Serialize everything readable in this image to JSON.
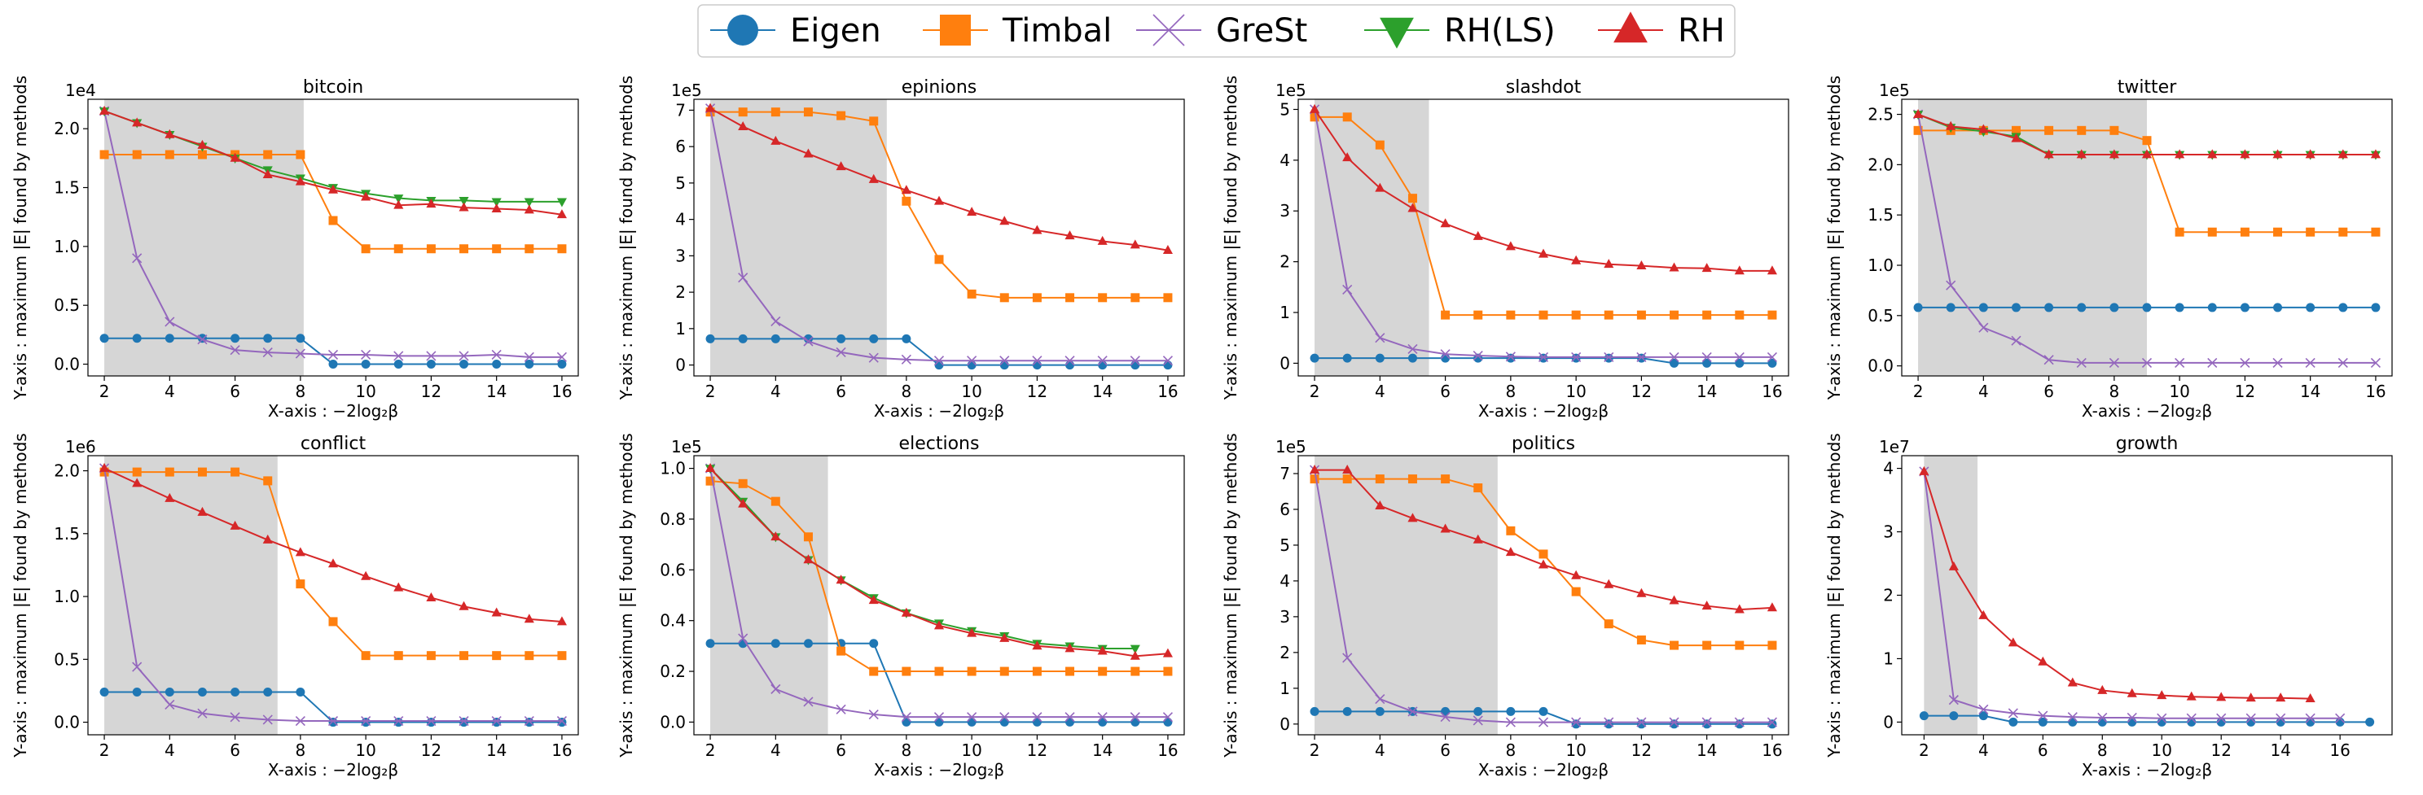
{
  "legend": [
    {
      "name": "Eigen",
      "color": "#1f77b4",
      "marker": "circle"
    },
    {
      "name": "Timbal",
      "color": "#ff7f0e",
      "marker": "square"
    },
    {
      "name": "GreSt",
      "color": "#9467bd",
      "marker": "x"
    },
    {
      "name": "RH(LS)",
      "color": "#2ca02c",
      "marker": "triangle-down"
    },
    {
      "name": "RH",
      "color": "#d62728",
      "marker": "triangle-up"
    }
  ],
  "chart_data": [
    {
      "type": "line",
      "title": "bitcoin",
      "sci": "1e4",
      "xlabel": "X-axis : −2log₂β",
      "ylabel": "Y-axis : maximum |E| found by methods",
      "xlim": [
        1.5,
        16.5
      ],
      "ylim": [
        -0.1,
        2.25
      ],
      "xticks": [
        2,
        4,
        6,
        8,
        10,
        12,
        14,
        16
      ],
      "yticks": [
        0.0,
        0.5,
        1.0,
        1.5,
        2.0
      ],
      "ytick_labels": [
        "0.0",
        "0.5",
        "1.0",
        "1.5",
        "2.0"
      ],
      "shade": [
        2,
        8.1
      ],
      "x": [
        2,
        3,
        4,
        5,
        6,
        7,
        8,
        9,
        10,
        11,
        12,
        13,
        14,
        15,
        16
      ],
      "series": [
        {
          "name": "Eigen",
          "values": [
            0.22,
            0.22,
            0.22,
            0.22,
            0.22,
            0.22,
            0.22,
            0.0,
            0.0,
            0.0,
            0.0,
            0.0,
            0.0,
            0.0,
            0.0
          ]
        },
        {
          "name": "Timbal",
          "values": [
            1.78,
            1.78,
            1.78,
            1.78,
            1.78,
            1.78,
            1.78,
            1.22,
            0.98,
            0.98,
            0.98,
            0.98,
            0.98,
            0.98,
            0.98
          ]
        },
        {
          "name": "GreSt",
          "values": [
            2.15,
            0.9,
            0.36,
            0.21,
            0.12,
            0.1,
            0.09,
            0.08,
            0.08,
            0.07,
            0.07,
            0.07,
            0.08,
            0.06,
            0.06
          ]
        },
        {
          "name": "RH(LS)",
          "values": [
            2.15,
            2.05,
            1.95,
            1.85,
            1.75,
            1.65,
            1.58,
            1.5,
            1.45,
            1.41,
            1.39,
            1.39,
            1.38,
            1.38,
            1.38
          ]
        },
        {
          "name": "RH",
          "values": [
            2.15,
            2.05,
            1.95,
            1.86,
            1.75,
            1.61,
            1.55,
            1.48,
            1.42,
            1.35,
            1.36,
            1.33,
            1.32,
            1.31,
            1.27
          ]
        }
      ]
    },
    {
      "type": "line",
      "title": "epinions",
      "sci": "1e5",
      "xlabel": "X-axis : −2log₂β",
      "ylabel": "Y-axis : maximum |E| found by methods",
      "xlim": [
        1.5,
        16.5
      ],
      "ylim": [
        -0.3,
        7.3
      ],
      "xticks": [
        2,
        4,
        6,
        8,
        10,
        12,
        14,
        16
      ],
      "yticks": [
        0,
        1,
        2,
        3,
        4,
        5,
        6,
        7
      ],
      "ytick_labels": [
        "0",
        "1",
        "2",
        "3",
        "4",
        "5",
        "6",
        "7"
      ],
      "shade": [
        2,
        7.4
      ],
      "x": [
        2,
        3,
        4,
        5,
        6,
        7,
        8,
        9,
        10,
        11,
        12,
        13,
        14,
        15,
        16
      ],
      "series": [
        {
          "name": "Eigen",
          "values": [
            0.72,
            0.72,
            0.72,
            0.72,
            0.72,
            0.72,
            0.72,
            0.0,
            0.0,
            0.0,
            0.0,
            0.0,
            0.0,
            0.0,
            0.0
          ]
        },
        {
          "name": "Timbal",
          "values": [
            6.95,
            6.95,
            6.95,
            6.95,
            6.85,
            6.7,
            4.5,
            2.9,
            1.95,
            1.85,
            1.85,
            1.85,
            1.85,
            1.85,
            1.85
          ]
        },
        {
          "name": "GreSt",
          "values": [
            7.05,
            2.4,
            1.2,
            0.65,
            0.35,
            0.2,
            0.15,
            0.12,
            0.12,
            0.12,
            0.12,
            0.12,
            0.12,
            0.12,
            0.12
          ]
        },
        {
          "name": "RH",
          "values": [
            7.05,
            6.55,
            6.15,
            5.8,
            5.45,
            5.1,
            4.8,
            4.5,
            4.2,
            3.95,
            3.7,
            3.55,
            3.4,
            3.3,
            3.15
          ]
        }
      ]
    },
    {
      "type": "line",
      "title": "slashdot",
      "sci": "1e5",
      "xlabel": "X-axis : −2log₂β",
      "ylabel": "Y-axis : maximum |E| found by methods",
      "xlim": [
        1.5,
        16.5
      ],
      "ylim": [
        -0.25,
        5.2
      ],
      "xticks": [
        2,
        4,
        6,
        8,
        10,
        12,
        14,
        16
      ],
      "yticks": [
        0,
        1,
        2,
        3,
        4,
        5
      ],
      "ytick_labels": [
        "0",
        "1",
        "2",
        "3",
        "4",
        "5"
      ],
      "shade": [
        2,
        5.5
      ],
      "x": [
        2,
        3,
        4,
        5,
        6,
        7,
        8,
        9,
        10,
        11,
        12,
        13,
        14,
        15,
        16
      ],
      "series": [
        {
          "name": "Eigen",
          "values": [
            0.1,
            0.1,
            0.1,
            0.1,
            0.1,
            0.1,
            0.1,
            0.1,
            0.1,
            0.1,
            0.1,
            0.0,
            0.0,
            0.0,
            0.0
          ]
        },
        {
          "name": "Timbal",
          "values": [
            4.85,
            4.85,
            4.3,
            3.25,
            0.95,
            0.95,
            0.95,
            0.95,
            0.95,
            0.95,
            0.95,
            0.95,
            0.95,
            0.95,
            0.95
          ]
        },
        {
          "name": "GreSt",
          "values": [
            5.0,
            1.45,
            0.5,
            0.28,
            0.18,
            0.15,
            0.13,
            0.12,
            0.12,
            0.12,
            0.12,
            0.12,
            0.12,
            0.12,
            0.12
          ]
        },
        {
          "name": "RH",
          "values": [
            5.0,
            4.05,
            3.45,
            3.05,
            2.75,
            2.5,
            2.3,
            2.15,
            2.02,
            1.95,
            1.92,
            1.88,
            1.87,
            1.82,
            1.82
          ]
        }
      ]
    },
    {
      "type": "line",
      "title": "twitter",
      "sci": "1e5",
      "xlabel": "X-axis : −2log₂β",
      "ylabel": "Y-axis : maximum |E| found by methods",
      "xlim": [
        1.5,
        16.5
      ],
      "ylim": [
        -0.1,
        2.65
      ],
      "xticks": [
        2,
        4,
        6,
        8,
        10,
        12,
        14,
        16
      ],
      "yticks": [
        0.0,
        0.5,
        1.0,
        1.5,
        2.0,
        2.5
      ],
      "ytick_labels": [
        "0.0",
        "0.5",
        "1.0",
        "1.5",
        "2.0",
        "2.5"
      ],
      "shade": [
        2,
        9
      ],
      "x": [
        2,
        3,
        4,
        5,
        6,
        7,
        8,
        9,
        10,
        11,
        12,
        13,
        14,
        15,
        16
      ],
      "series": [
        {
          "name": "Eigen",
          "values": [
            0.58,
            0.58,
            0.58,
            0.58,
            0.58,
            0.58,
            0.58,
            0.58,
            0.58,
            0.58,
            0.58,
            0.58,
            0.58,
            0.58,
            0.58
          ]
        },
        {
          "name": "Timbal",
          "values": [
            2.34,
            2.34,
            2.34,
            2.34,
            2.34,
            2.34,
            2.34,
            2.24,
            1.33,
            1.33,
            1.33,
            1.33,
            1.33,
            1.33,
            1.33
          ]
        },
        {
          "name": "GreSt",
          "values": [
            2.5,
            0.8,
            0.38,
            0.25,
            0.06,
            0.03,
            0.03,
            0.03,
            0.03,
            0.03,
            0.03,
            0.03,
            0.03,
            0.03,
            0.03
          ]
        },
        {
          "name": "RH(LS)",
          "values": [
            2.5,
            2.37,
            2.33,
            2.28,
            2.1,
            2.1,
            2.1,
            2.1,
            2.1,
            2.1,
            2.1,
            2.1,
            2.1,
            2.1,
            2.1
          ]
        },
        {
          "name": "RH",
          "values": [
            2.5,
            2.38,
            2.35,
            2.26,
            2.1,
            2.1,
            2.1,
            2.1,
            2.1,
            2.1,
            2.1,
            2.1,
            2.1,
            2.1,
            2.1
          ]
        }
      ]
    },
    {
      "type": "line",
      "title": "conflict",
      "sci": "1e6",
      "xlabel": "X-axis : −2log₂β",
      "ylabel": "Y-axis : maximum |E| found by methods",
      "xlim": [
        1.5,
        16.5
      ],
      "ylim": [
        -0.1,
        2.12
      ],
      "xticks": [
        2,
        4,
        6,
        8,
        10,
        12,
        14,
        16
      ],
      "yticks": [
        0.0,
        0.5,
        1.0,
        1.5,
        2.0
      ],
      "ytick_labels": [
        "0.0",
        "0.5",
        "1.0",
        "1.5",
        "2.0"
      ],
      "shade": [
        2,
        7.3
      ],
      "x": [
        2,
        3,
        4,
        5,
        6,
        7,
        8,
        9,
        10,
        11,
        12,
        13,
        14,
        15,
        16
      ],
      "series": [
        {
          "name": "Eigen",
          "values": [
            0.24,
            0.24,
            0.24,
            0.24,
            0.24,
            0.24,
            0.24,
            0.0,
            0.0,
            0.0,
            0.0,
            0.0,
            0.0,
            0.0,
            0.0
          ]
        },
        {
          "name": "Timbal",
          "values": [
            1.99,
            1.99,
            1.99,
            1.99,
            1.99,
            1.92,
            1.1,
            0.8,
            0.53,
            0.53,
            0.53,
            0.53,
            0.53,
            0.53,
            0.53
          ]
        },
        {
          "name": "GreSt",
          "values": [
            2.02,
            0.44,
            0.14,
            0.07,
            0.04,
            0.02,
            0.01,
            0.01,
            0.01,
            0.01,
            0.01,
            0.01,
            0.01,
            0.01,
            0.01
          ]
        },
        {
          "name": "RH",
          "values": [
            2.02,
            1.9,
            1.78,
            1.67,
            1.56,
            1.45,
            1.35,
            1.26,
            1.16,
            1.07,
            0.99,
            0.92,
            0.87,
            0.82,
            0.8
          ]
        }
      ]
    },
    {
      "type": "line",
      "title": "elections",
      "sci": "1e5",
      "xlabel": "X-axis : −2log₂β",
      "ylabel": "Y-axis : maximum |E| found by methods",
      "xlim": [
        1.5,
        16.5
      ],
      "ylim": [
        -0.05,
        1.05
      ],
      "xticks": [
        2,
        4,
        6,
        8,
        10,
        12,
        14,
        16
      ],
      "yticks": [
        0.0,
        0.2,
        0.4,
        0.6,
        0.8,
        1.0
      ],
      "ytick_labels": [
        "0.0",
        "0.2",
        "0.4",
        "0.6",
        "0.8",
        "1.0"
      ],
      "shade": [
        2,
        5.6
      ],
      "x": [
        2,
        3,
        4,
        5,
        6,
        7,
        8,
        9,
        10,
        11,
        12,
        13,
        14,
        15,
        16
      ],
      "series": [
        {
          "name": "Eigen",
          "values": [
            0.31,
            0.31,
            0.31,
            0.31,
            0.31,
            0.31,
            0.0,
            0.0,
            0.0,
            0.0,
            0.0,
            0.0,
            0.0,
            0.0,
            0.0
          ]
        },
        {
          "name": "Timbal",
          "values": [
            0.95,
            0.94,
            0.87,
            0.73,
            0.28,
            0.2,
            0.2,
            0.2,
            0.2,
            0.2,
            0.2,
            0.2,
            0.2,
            0.2,
            0.2
          ]
        },
        {
          "name": "GreSt",
          "values": [
            1.0,
            0.33,
            0.13,
            0.08,
            0.05,
            0.03,
            0.02,
            0.02,
            0.02,
            0.02,
            0.02,
            0.02,
            0.02,
            0.02,
            0.02
          ]
        },
        {
          "name": "RH(LS)",
          "values": [
            1.0,
            0.87,
            0.73,
            0.64,
            0.56,
            0.49,
            0.43,
            0.39,
            0.36,
            0.34,
            0.31,
            0.3,
            0.29,
            0.29,
            null
          ]
        },
        {
          "name": "RH",
          "values": [
            1.0,
            0.86,
            0.73,
            0.64,
            0.56,
            0.48,
            0.43,
            0.38,
            0.35,
            0.33,
            0.3,
            0.29,
            0.28,
            0.26,
            0.27
          ]
        }
      ]
    },
    {
      "type": "line",
      "title": "politics",
      "sci": "1e5",
      "xlabel": "X-axis : −2log₂β",
      "ylabel": "Y-axis : maximum |E| found by methods",
      "xlim": [
        1.5,
        16.5
      ],
      "ylim": [
        -0.3,
        7.5
      ],
      "xticks": [
        2,
        4,
        6,
        8,
        10,
        12,
        14,
        16
      ],
      "yticks": [
        0,
        1,
        2,
        3,
        4,
        5,
        6,
        7
      ],
      "ytick_labels": [
        "0",
        "1",
        "2",
        "3",
        "4",
        "5",
        "6",
        "7"
      ],
      "shade": [
        2,
        7.6
      ],
      "x": [
        2,
        3,
        4,
        5,
        6,
        7,
        8,
        9,
        10,
        11,
        12,
        13,
        14,
        15,
        16
      ],
      "series": [
        {
          "name": "Eigen",
          "values": [
            0.35,
            0.35,
            0.35,
            0.35,
            0.35,
            0.35,
            0.35,
            0.35,
            0.0,
            0.0,
            0.0,
            0.0,
            0.0,
            0.0,
            0.0
          ]
        },
        {
          "name": "Timbal",
          "values": [
            6.85,
            6.85,
            6.85,
            6.85,
            6.85,
            6.6,
            5.4,
            4.75,
            3.7,
            2.8,
            2.35,
            2.2,
            2.2,
            2.2,
            2.2
          ]
        },
        {
          "name": "GreSt",
          "values": [
            7.1,
            1.85,
            0.7,
            0.35,
            0.2,
            0.1,
            0.05,
            0.05,
            0.05,
            0.05,
            0.05,
            0.05,
            0.05,
            0.05,
            0.05
          ]
        },
        {
          "name": "RH",
          "values": [
            7.1,
            7.1,
            6.1,
            5.75,
            5.45,
            5.15,
            4.8,
            4.45,
            4.15,
            3.9,
            3.65,
            3.45,
            3.3,
            3.2,
            3.25
          ]
        }
      ]
    },
    {
      "type": "line",
      "title": "growth",
      "sci": "1e7",
      "xlabel": "X-axis : −2log₂β",
      "ylabel": "Y-axis : maximum |E| found by methods",
      "xlim": [
        1.25,
        17.75
      ],
      "ylim": [
        -0.2,
        4.2
      ],
      "xticks": [
        2,
        4,
        6,
        8,
        10,
        12,
        14,
        16
      ],
      "yticks": [
        0,
        1,
        2,
        3,
        4
      ],
      "ytick_labels": [
        "0",
        "1",
        "2",
        "3",
        "4"
      ],
      "shade": [
        2,
        3.8
      ],
      "x": [
        2,
        3,
        4,
        5,
        6,
        7,
        8,
        9,
        10,
        11,
        12,
        13,
        14,
        15,
        16,
        17
      ],
      "series": [
        {
          "name": "Eigen",
          "values": [
            0.1,
            0.1,
            0.1,
            0.0,
            0.0,
            0.0,
            0.0,
            0.0,
            0.0,
            0.0,
            0.0,
            0.0,
            0.0,
            0.0,
            0.0,
            0.0
          ]
        },
        {
          "name": "GreSt",
          "values": [
            3.95,
            0.35,
            0.2,
            0.14,
            0.1,
            0.08,
            0.07,
            0.07,
            0.06,
            0.06,
            0.06,
            0.06,
            0.06,
            0.06,
            0.06,
            null
          ]
        },
        {
          "name": "RH",
          "values": [
            3.95,
            2.45,
            1.68,
            1.25,
            0.95,
            0.62,
            0.5,
            0.45,
            0.42,
            0.4,
            0.39,
            0.38,
            0.38,
            0.37,
            null,
            null
          ]
        }
      ]
    }
  ]
}
